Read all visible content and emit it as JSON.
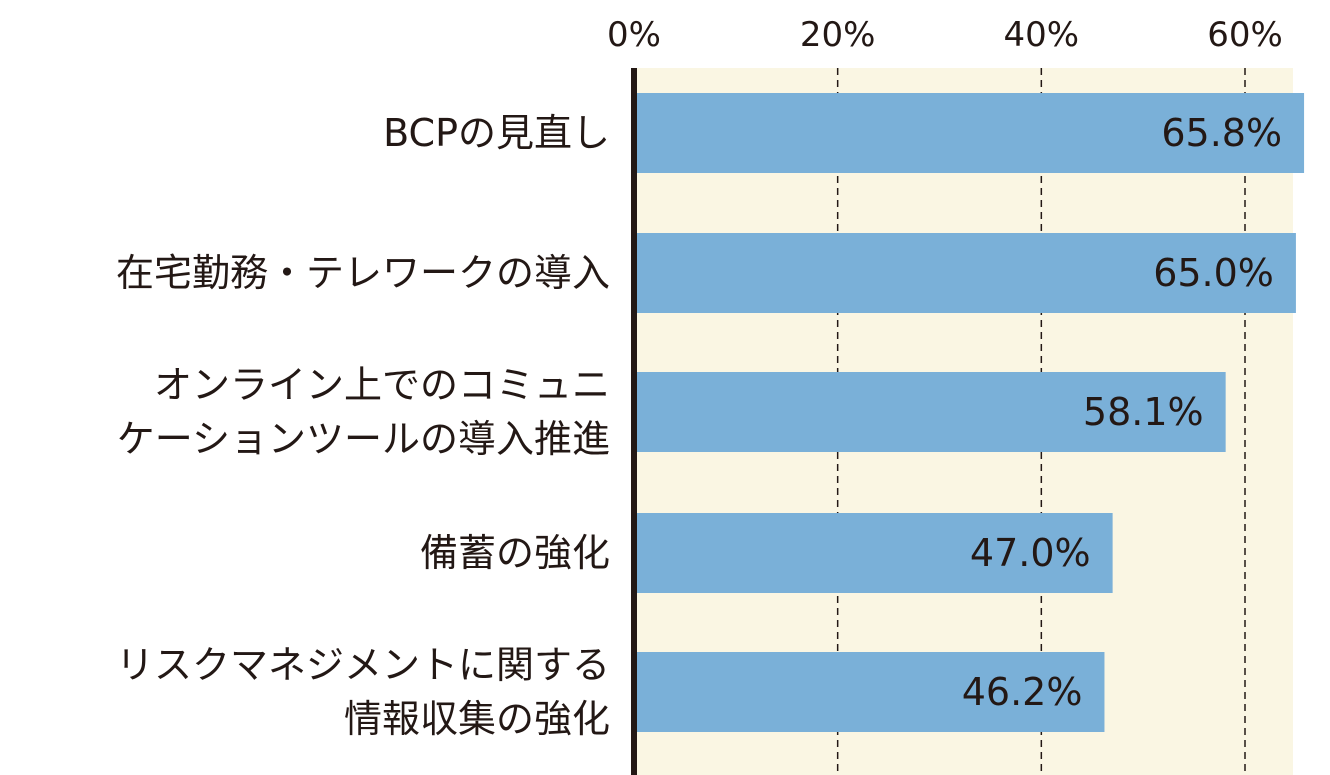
{
  "chart_data": {
    "type": "bar",
    "orientation": "horizontal",
    "categories": [
      [
        "BCPの見直し"
      ],
      [
        "在宅勤務・テレワークの導入"
      ],
      [
        "オンライン上でのコミュニ",
        "ケーションツールの導入推進"
      ],
      [
        "備蓄の強化"
      ],
      [
        "リスクマネジメントに関する",
        "情報収集の強化"
      ]
    ],
    "values": [
      65.8,
      65.0,
      58.1,
      47.0,
      46.2
    ],
    "value_labels": [
      "65.8%",
      "65.0%",
      "58.1%",
      "47.0%",
      "46.2%"
    ],
    "xticks": [
      0,
      20,
      40,
      60
    ],
    "xtick_labels": [
      "0%",
      "20%",
      "40%",
      "60%"
    ],
    "xlim": [
      0,
      65
    ],
    "grid": true,
    "title": "",
    "xlabel": "",
    "ylabel": "",
    "colors": {
      "bar": "#7ab0d8",
      "plot_background": "#faf6e3",
      "axis": "#231815",
      "grid": "#231815",
      "text": "#231815"
    }
  }
}
